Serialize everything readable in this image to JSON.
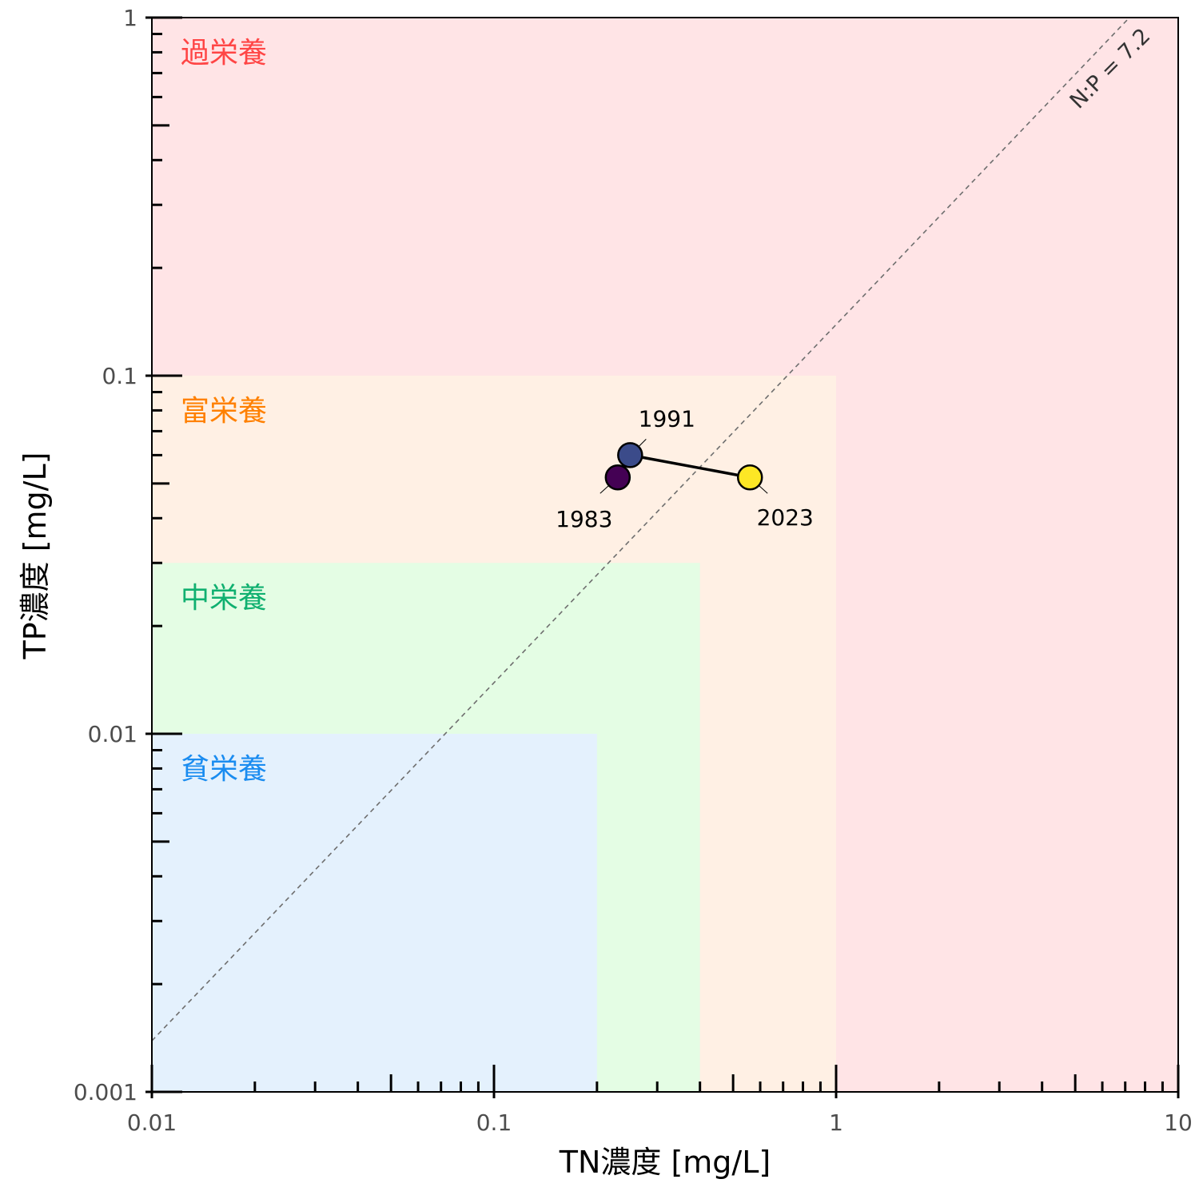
{
  "chart_data": {
    "type": "scatter",
    "x_scale": "log",
    "y_scale": "log",
    "xlim": [
      0.01,
      10
    ],
    "ylim": [
      0.001,
      1
    ],
    "xlabel": "TN濃度 [mg/L]",
    "ylabel": "TP濃度 [mg/L]",
    "x_ticks": [
      {
        "value": 0.01,
        "label": "0.01"
      },
      {
        "value": 0.1,
        "label": "0.1"
      },
      {
        "value": 1,
        "label": "1"
      },
      {
        "value": 10,
        "label": "10"
      }
    ],
    "y_ticks": [
      {
        "value": 0.001,
        "label": "0.001"
      },
      {
        "value": 0.01,
        "label": "0.01"
      },
      {
        "value": 0.1,
        "label": "0.1"
      },
      {
        "value": 1,
        "label": "1"
      }
    ],
    "zones": [
      {
        "label": "過栄養",
        "tn_max": 10,
        "tp_max": 1,
        "fill": "#ffe4e6",
        "text_color": "#ff4545"
      },
      {
        "label": "富栄養",
        "tn_max": 1,
        "tp_max": 0.1,
        "fill": "#fff0e4",
        "text_color": "#ff8000"
      },
      {
        "label": "中栄養",
        "tn_max": 0.4,
        "tp_max": 0.03,
        "fill": "#e4fde4",
        "text_color": "#10b070"
      },
      {
        "label": "貧栄養",
        "tn_max": 0.2,
        "tp_max": 0.01,
        "fill": "#e4f1fd",
        "text_color": "#1a8cf0"
      }
    ],
    "ratio_line": {
      "label": "N:P = 7.2",
      "ratio": 7.2
    },
    "points": [
      {
        "label": "1983",
        "tn": 0.23,
        "tp": 0.052,
        "color": "#440154"
      },
      {
        "label": "1991",
        "tn": 0.25,
        "tp": 0.06,
        "color": "#3b4b8a"
      },
      {
        "label": "2023",
        "tn": 0.56,
        "tp": 0.052,
        "color": "#fde725"
      }
    ],
    "path": [
      "1991",
      "2023"
    ],
    "grid": false,
    "legend": "none"
  }
}
